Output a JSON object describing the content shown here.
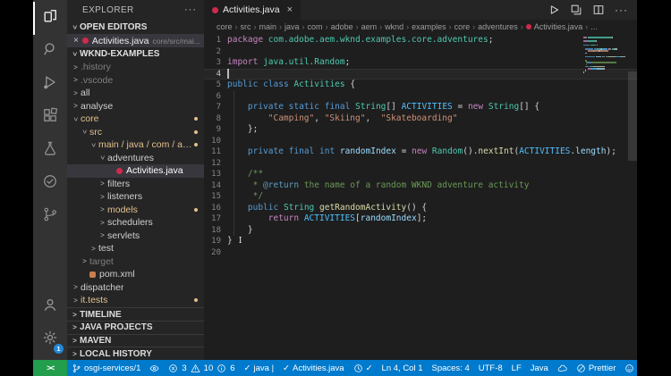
{
  "colors": {
    "status_bar_bg": "#007ACC",
    "remote_bg": "#229E4D",
    "activity_bar_bg": "#333333",
    "sidebar_bg": "#252526",
    "editor_bg": "#1E1E1E",
    "selection_bg": "#37373D",
    "git_modified": "#E2C08D",
    "java_icon": "#D02A4C",
    "maven_icon": "#C97E4F",
    "tokens": {
      "kw": "#C586C0",
      "kw2": "#569CD6",
      "type": "#4EC9B0",
      "cst": "#4FC1FF",
      "var": "#9CDCFE",
      "str": "#CE9178",
      "cmt": "#6A9955",
      "doc": "#5E9CC5",
      "meth": "#DCDCAA",
      "pl": "#D4D4D4"
    }
  },
  "activity_bar": {
    "top": [
      {
        "id": "explorer",
        "active": true
      },
      {
        "id": "search",
        "active": false
      },
      {
        "id": "run-debug",
        "active": false
      },
      {
        "id": "extensions",
        "active": false
      },
      {
        "id": "testing",
        "active": false
      },
      {
        "id": "checklist",
        "active": false
      },
      {
        "id": "source-control",
        "active": false
      }
    ],
    "bottom": [
      {
        "id": "account",
        "active": false
      },
      {
        "id": "settings",
        "active": false,
        "badge": "1"
      }
    ]
  },
  "sidebar": {
    "title": "EXPLORER",
    "more": "···",
    "open_editors": {
      "header": "OPEN EDITORS",
      "close": "×",
      "file": "Activities.java",
      "desc": "core/src/mai..."
    },
    "workspace": {
      "header": "WKND-EXAMPLES"
    },
    "tree": [
      {
        "label": ".history",
        "depth": 1,
        "chev": "col",
        "style": "dim"
      },
      {
        "label": ".vscode",
        "depth": 1,
        "chev": "col",
        "style": "dim"
      },
      {
        "label": "all",
        "depth": 1,
        "chev": "col"
      },
      {
        "label": "analyse",
        "depth": 1,
        "chev": "col"
      },
      {
        "label": "core",
        "depth": 1,
        "chev": "exp",
        "style": "mod",
        "badge": true
      },
      {
        "label": "src",
        "depth": 2,
        "chev": "exp",
        "style": "mod",
        "badge": true
      },
      {
        "label": "main / java / com / adobe...",
        "depth": 3,
        "chev": "exp",
        "style": "mod",
        "badge": true
      },
      {
        "label": "adventures",
        "depth": 4,
        "chev": "exp"
      },
      {
        "label": "Activities.java",
        "depth": 5,
        "icon": "java",
        "selected": true
      },
      {
        "label": "filters",
        "depth": 4,
        "chev": "col"
      },
      {
        "label": "listeners",
        "depth": 4,
        "chev": "col"
      },
      {
        "label": "models",
        "depth": 4,
        "chev": "col",
        "style": "mod",
        "badge": true
      },
      {
        "label": "schedulers",
        "depth": 4,
        "chev": "col"
      },
      {
        "label": "servlets",
        "depth": 4,
        "chev": "col"
      },
      {
        "label": "test",
        "depth": 3,
        "chev": "col"
      },
      {
        "label": "target",
        "depth": 2,
        "chev": "col",
        "style": "dim"
      },
      {
        "label": "pom.xml",
        "depth": 2,
        "icon": "maven"
      },
      {
        "label": "dispatcher",
        "depth": 1,
        "chev": "col"
      },
      {
        "label": "it.tests",
        "depth": 1,
        "chev": "col",
        "style": "mod",
        "badge": true
      }
    ],
    "sections": [
      "TIMELINE",
      "JAVA PROJECTS",
      "MAVEN",
      "LOCAL HISTORY"
    ]
  },
  "editor": {
    "tab": {
      "label": "Activities.java",
      "close": "×"
    },
    "toolbar": {
      "more": "···"
    },
    "breadcrumbs": {
      "path": [
        "core",
        "src",
        "main",
        "java",
        "com",
        "adobe",
        "aem",
        "wknd",
        "examples",
        "core",
        "adventures"
      ],
      "file": "Activities.java",
      "tail": "..."
    },
    "code": {
      "caret_line": 4,
      "lines": [
        {
          "t": [
            [
              "kw",
              "package"
            ],
            [
              "pl",
              " "
            ],
            [
              "type",
              "com.adobe.aem.wknd.examples.core.adventures"
            ],
            [
              "pl",
              ";"
            ]
          ]
        },
        {
          "t": []
        },
        {
          "t": [
            [
              "kw",
              "import"
            ],
            [
              "pl",
              " "
            ],
            [
              "type",
              "java.util.Random"
            ],
            [
              "pl",
              ";"
            ]
          ]
        },
        {
          "t": [],
          "caret": true
        },
        {
          "t": [
            [
              "kw2",
              "public"
            ],
            [
              "pl",
              " "
            ],
            [
              "kw2",
              "class"
            ],
            [
              "pl",
              " "
            ],
            [
              "type",
              "Activities"
            ],
            [
              "pl",
              " {"
            ]
          ]
        },
        {
          "t": []
        },
        {
          "t": [
            [
              "pl",
              "    "
            ],
            [
              "kw2",
              "private"
            ],
            [
              "pl",
              " "
            ],
            [
              "kw2",
              "static"
            ],
            [
              "pl",
              " "
            ],
            [
              "kw2",
              "final"
            ],
            [
              "pl",
              " "
            ],
            [
              "type",
              "String"
            ],
            [
              "pl",
              "[] "
            ],
            [
              "cst",
              "ACTIVITIES"
            ],
            [
              "pl",
              " = "
            ],
            [
              "kw",
              "new"
            ],
            [
              "pl",
              " "
            ],
            [
              "type",
              "String"
            ],
            [
              "pl",
              "[] {"
            ]
          ]
        },
        {
          "t": [
            [
              "pl",
              "        "
            ],
            [
              "str",
              "\"Camping\""
            ],
            [
              "pl",
              ", "
            ],
            [
              "str",
              "\"Skiing\""
            ],
            [
              "pl",
              ",  "
            ],
            [
              "str",
              "\"Skateboarding\""
            ]
          ]
        },
        {
          "t": [
            [
              "pl",
              "    };"
            ]
          ]
        },
        {
          "t": []
        },
        {
          "t": [
            [
              "pl",
              "    "
            ],
            [
              "kw2",
              "private"
            ],
            [
              "pl",
              " "
            ],
            [
              "kw2",
              "final"
            ],
            [
              "pl",
              " "
            ],
            [
              "kw2",
              "int"
            ],
            [
              "pl",
              " "
            ],
            [
              "var",
              "randomIndex"
            ],
            [
              "pl",
              " = "
            ],
            [
              "kw",
              "new"
            ],
            [
              "pl",
              " "
            ],
            [
              "type",
              "Random"
            ],
            [
              "pl",
              "()."
            ],
            [
              "meth",
              "nextInt"
            ],
            [
              "pl",
              "("
            ],
            [
              "cst",
              "ACTIVITIES"
            ],
            [
              "pl",
              "."
            ],
            [
              "var",
              "length"
            ],
            [
              "pl",
              ");"
            ]
          ]
        },
        {
          "t": []
        },
        {
          "t": [
            [
              "cmt",
              "    /**"
            ]
          ]
        },
        {
          "t": [
            [
              "cmt",
              "     * "
            ],
            [
              "doc",
              "@return"
            ],
            [
              "cmt",
              " the name of a random WKND adventure activity"
            ]
          ]
        },
        {
          "t": [
            [
              "cmt",
              "     */"
            ]
          ]
        },
        {
          "t": [
            [
              "pl",
              "    "
            ],
            [
              "kw2",
              "public"
            ],
            [
              "pl",
              " "
            ],
            [
              "type",
              "String"
            ],
            [
              "pl",
              " "
            ],
            [
              "meth",
              "getRandomActivity"
            ],
            [
              "pl",
              "() {"
            ]
          ]
        },
        {
          "t": [
            [
              "pl",
              "        "
            ],
            [
              "kw",
              "return"
            ],
            [
              "pl",
              " "
            ],
            [
              "cst",
              "ACTIVITIES"
            ],
            [
              "pl",
              "["
            ],
            [
              "var",
              "randomIndex"
            ],
            [
              "pl",
              "];"
            ]
          ]
        },
        {
          "t": [
            [
              "pl",
              "    }"
            ]
          ]
        },
        {
          "t": [
            [
              "pl",
              "}"
            ],
            [
              "ibeam",
              "I"
            ]
          ]
        },
        {
          "t": []
        }
      ]
    }
  },
  "status_bar": {
    "remote_label": "><",
    "branch": "osgi-services/1",
    "problems": {
      "errors": "3",
      "warnings": "10",
      "infos": "6"
    },
    "checks": [
      {
        "label": "java |"
      },
      {
        "label": "Activities.java"
      }
    ],
    "cursor": "Ln 4, Col 1",
    "indent": "Spaces: 4",
    "encoding": "UTF-8",
    "eol": "LF",
    "language": "Java",
    "formatter": "Prettier"
  }
}
